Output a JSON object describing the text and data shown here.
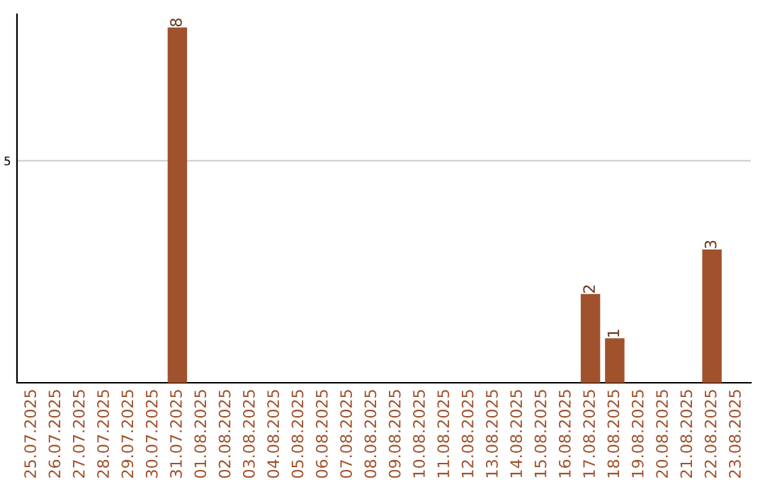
{
  "chart_data": {
    "type": "bar",
    "categories": [
      "25.07.2025",
      "26.07.2025",
      "27.07.2025",
      "28.07.2025",
      "29.07.2025",
      "30.07.2025",
      "31.07.2025",
      "01.08.2025",
      "02.08.2025",
      "03.08.2025",
      "04.08.2025",
      "05.08.2025",
      "06.08.2025",
      "07.08.2025",
      "08.08.2025",
      "09.08.2025",
      "10.08.2025",
      "11.08.2025",
      "12.08.2025",
      "13.08.2025",
      "14.08.2025",
      "15.08.2025",
      "16.08.2025",
      "17.08.2025",
      "18.08.2025",
      "19.08.2025",
      "20.08.2025",
      "21.08.2025",
      "22.08.2025",
      "23.08.2025"
    ],
    "values": [
      0,
      0,
      0,
      0,
      0,
      0,
      8,
      0,
      0,
      0,
      0,
      0,
      0,
      0,
      0,
      0,
      0,
      0,
      0,
      0,
      0,
      0,
      0,
      2,
      1,
      0,
      0,
      0,
      3,
      0
    ],
    "value_labels": [
      null,
      null,
      null,
      null,
      null,
      null,
      "8",
      null,
      null,
      null,
      null,
      null,
      null,
      null,
      null,
      null,
      null,
      null,
      null,
      null,
      null,
      null,
      null,
      "2",
      "1",
      null,
      null,
      null,
      "3",
      null
    ],
    "color": "#a0522d",
    "ylim": [
      0,
      8.3
    ],
    "yticks": [
      5
    ],
    "grid": "y"
  }
}
